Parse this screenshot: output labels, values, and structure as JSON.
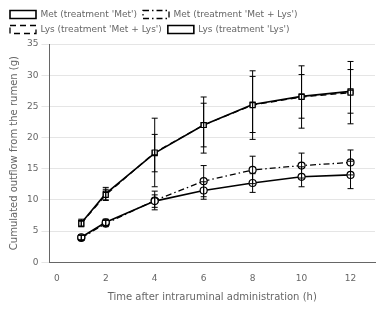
{
  "chart_data": {
    "type": "line",
    "xlabel": "Time after intraruminal administration (h)",
    "ylabel": "Cumulated outflow from the rumen (g)",
    "x": [
      1,
      2,
      4,
      6,
      8,
      10,
      12
    ],
    "xlim": [
      -0.3,
      13
    ],
    "xticks": [
      0,
      2,
      4,
      6,
      8,
      10,
      12
    ],
    "ylim": [
      0,
      35
    ],
    "yticks": [
      0,
      5,
      10,
      15,
      20,
      25,
      30,
      35
    ],
    "grid": "y",
    "legend": "upper left",
    "series": [
      {
        "name": "Met (treatment 'Met')",
        "color": "#000000",
        "line_style": "solid",
        "marker": "circle",
        "values": [
          4.0,
          6.4,
          9.8,
          11.5,
          12.7,
          13.7,
          14.0
        ],
        "error": [
          0.4,
          0.5,
          1.0,
          1.4,
          1.5,
          1.6,
          2.2
        ]
      },
      {
        "name": "Met (treatment 'Met + Lys')",
        "color": "#000000",
        "line_style": "dashdot",
        "marker": "circle",
        "values": [
          3.9,
          6.2,
          9.9,
          13.0,
          14.8,
          15.5,
          16.0
        ],
        "error": [
          0.4,
          0.5,
          1.5,
          2.5,
          2.2,
          2.0,
          2.0
        ]
      },
      {
        "name": "Lys (treatment 'Met + Lys')",
        "color": "#000000",
        "line_style": "dashed",
        "marker": "square",
        "values": [
          6.2,
          10.8,
          17.6,
          22.0,
          25.2,
          26.5,
          27.2
        ],
        "error": [
          0.5,
          0.9,
          5.5,
          4.5,
          5.5,
          5.0,
          5.0
        ]
      },
      {
        "name": "Lys (treatment 'Lys')",
        "color": "#000000",
        "line_style": "solid",
        "marker": "square",
        "values": [
          6.3,
          11.0,
          17.5,
          22.0,
          25.3,
          26.6,
          27.4
        ],
        "error": [
          0.6,
          1.0,
          3.0,
          3.5,
          4.5,
          3.5,
          3.5
        ]
      }
    ]
  }
}
